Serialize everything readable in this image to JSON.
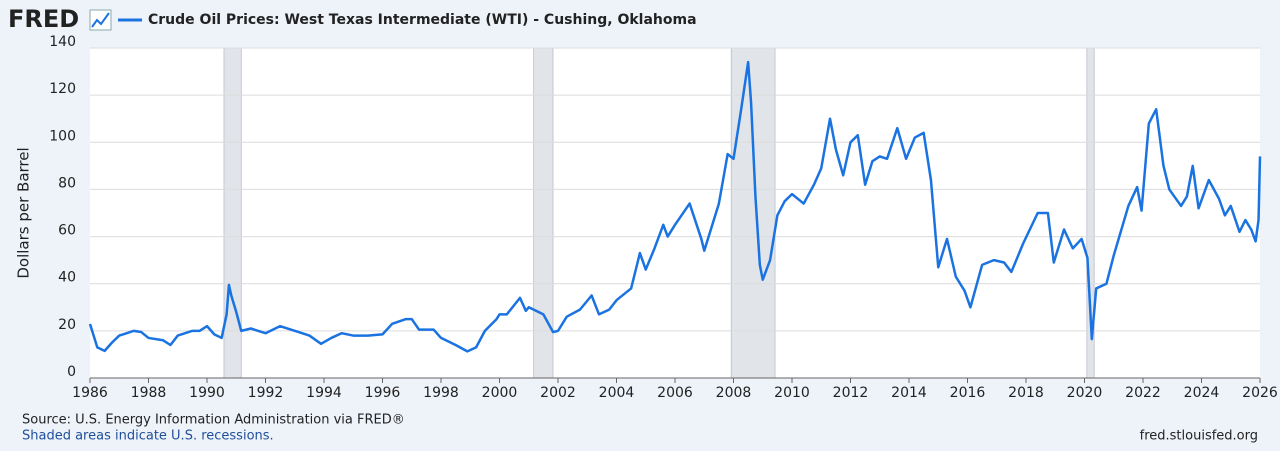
{
  "logo": "FRED",
  "chart_data": {
    "type": "line",
    "series_name": "Crude Oil Prices: West Texas Intermediate (WTI) - Cushing, Oklahoma",
    "y_label": "Dollars per Barrel",
    "source": "Source: U.S. Energy Information Administration via FRED®",
    "note": "Shaded areas indicate U.S. recessions.",
    "site": "fred.stlouisfed.org",
    "color": "#1a73e0",
    "grid": true,
    "xlim": [
      1986,
      2026
    ],
    "ylim": [
      0,
      140
    ],
    "xticks": [
      1986,
      1988,
      1990,
      1992,
      1994,
      1996,
      1998,
      2000,
      2002,
      2004,
      2006,
      2008,
      2010,
      2012,
      2014,
      2016,
      2018,
      2020,
      2022,
      2024,
      2026
    ],
    "yticks": [
      0,
      20,
      40,
      60,
      80,
      100,
      120,
      140
    ],
    "recessions": [
      [
        1990.58,
        1991.17
      ],
      [
        2001.17,
        2001.83
      ],
      [
        2007.92,
        2009.42
      ],
      [
        2020.08,
        2020.33
      ]
    ],
    "x": [
      1986.0,
      1986.25,
      1986.5,
      1986.75,
      1987.0,
      1987.5,
      1987.75,
      1988.0,
      1988.5,
      1988.75,
      1989.0,
      1989.5,
      1989.75,
      1990.0,
      1990.25,
      1990.5,
      1990.67,
      1990.75,
      1990.83,
      1991.0,
      1991.17,
      1991.5,
      1992.0,
      1992.5,
      1993.0,
      1993.5,
      1993.9,
      1994.25,
      1994.6,
      1995.0,
      1995.5,
      1996.0,
      1996.33,
      1996.8,
      1997.0,
      1997.25,
      1997.75,
      1998.0,
      1998.5,
      1998.9,
      1999.2,
      1999.5,
      1999.9,
      2000.0,
      2000.25,
      2000.7,
      2000.9,
      2001.0,
      2001.5,
      2001.83,
      2002.0,
      2002.3,
      2002.75,
      2003.15,
      2003.4,
      2003.75,
      2004.0,
      2004.5,
      2004.8,
      2005.0,
      2005.3,
      2005.6,
      2005.75,
      2006.0,
      2006.5,
      2006.9,
      2007.0,
      2007.5,
      2007.8,
      2008.0,
      2008.25,
      2008.5,
      2008.6,
      2008.75,
      2008.9,
      2009.0,
      2009.25,
      2009.5,
      2009.75,
      2010.0,
      2010.4,
      2010.75,
      2011.0,
      2011.3,
      2011.5,
      2011.75,
      2012.0,
      2012.25,
      2012.5,
      2012.75,
      2013.0,
      2013.25,
      2013.6,
      2013.9,
      2014.2,
      2014.5,
      2014.75,
      2015.0,
      2015.3,
      2015.6,
      2015.9,
      2016.1,
      2016.5,
      2016.9,
      2017.25,
      2017.5,
      2017.9,
      2018.4,
      2018.75,
      2018.95,
      2019.3,
      2019.6,
      2019.9,
      2020.1,
      2020.25,
      2020.4,
      2020.75,
      2021.0,
      2021.5,
      2021.8,
      2021.95,
      2022.2,
      2022.45,
      2022.7,
      2022.9,
      2023.3,
      2023.5,
      2023.7,
      2023.9,
      2024.25,
      2024.6,
      2024.8,
      2025.0,
      2025.3,
      2025.5,
      2025.7,
      2025.85,
      2025.95,
      2026.0
    ],
    "values": [
      22.9,
      13,
      11.5,
      15,
      18,
      20,
      19.5,
      17,
      16,
      14,
      18,
      20,
      20,
      22,
      18.5,
      17,
      27,
      39.5,
      35,
      28,
      20,
      21,
      19,
      22,
      20,
      18,
      14.5,
      17,
      19,
      18,
      18,
      18.5,
      23,
      25,
      25,
      20.5,
      20.5,
      17,
      14,
      11.3,
      13,
      20,
      25,
      27,
      27,
      34,
      28.5,
      30,
      27,
      19.5,
      20,
      26,
      29,
      35,
      27,
      29,
      33,
      38,
      53,
      46,
      55,
      65,
      60,
      65,
      74,
      59,
      54,
      74,
      95,
      93,
      113,
      134,
      117,
      77,
      48,
      41.7,
      50,
      69,
      75,
      78,
      74,
      82,
      89,
      110,
      97,
      86,
      100,
      103,
      82,
      92,
      94,
      93,
      106,
      93,
      102,
      104,
      84,
      47,
      59,
      43,
      37,
      30,
      48,
      50,
      49,
      45,
      57,
      70,
      70,
      49,
      63,
      55,
      59,
      51,
      16.5,
      38,
      40,
      52,
      73,
      81,
      71,
      108,
      114,
      90,
      80,
      73,
      77,
      90,
      72,
      84,
      76,
      69,
      73,
      62,
      67,
      63,
      58,
      67,
      94
    ]
  }
}
